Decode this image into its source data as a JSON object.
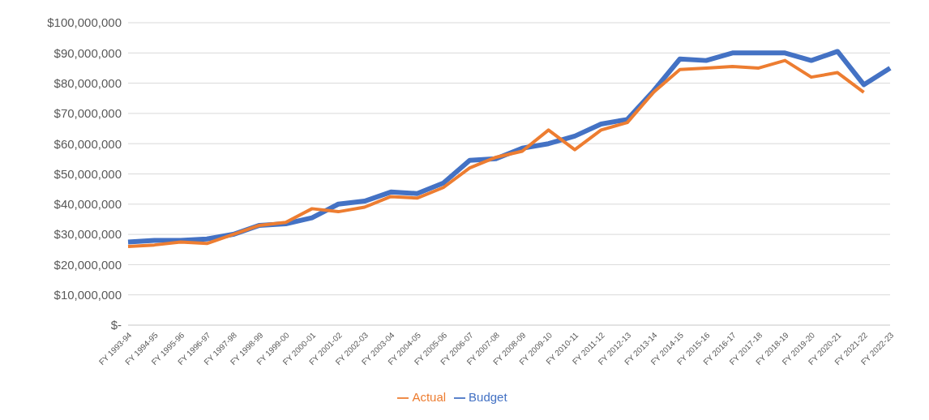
{
  "chart_data": {
    "type": "line",
    "categories": [
      "FY 1993-94",
      "FY 1994-95",
      "FY 1995-96",
      "FY 1996-97",
      "FY 1997-98",
      "FY 1998-99",
      "FY 1999-00",
      "FY 2000-01",
      "FY 2001-02",
      "FY 2002-03",
      "FY 2003-04",
      "FY 2004-05",
      "FY 2005-06",
      "FY 2006-07",
      "FY 2007-08",
      "FY 2008-09",
      "FY 2009-10",
      "FY 2010-11",
      "FY 2011-12",
      "FY 2012-13",
      "FY 2013-14",
      "FY 2014-15",
      "FY 2015-16",
      "FY 2016-17",
      "FY 2017-18",
      "FY 2018-19",
      "FY 2019-20",
      "FY 2020-21",
      "FY 2021-22",
      "FY 2022-23"
    ],
    "series": [
      {
        "name": "Budget",
        "color": "#4472c4",
        "values": [
          27500000,
          28000000,
          28000000,
          28500000,
          30000000,
          33000000,
          33500000,
          35500000,
          40000000,
          41000000,
          44000000,
          43500000,
          47000000,
          54500000,
          55000000,
          58500000,
          60000000,
          62500000,
          66500000,
          68000000,
          77500000,
          88000000,
          87500000,
          90000000,
          90000000,
          90000000,
          87500000,
          90500000,
          79500000,
          85000000
        ]
      },
      {
        "name": "Actual",
        "color": "#ed7d31",
        "values": [
          26000000,
          26500000,
          27500000,
          27000000,
          30000000,
          33000000,
          34000000,
          38500000,
          37500000,
          39000000,
          42500000,
          42000000,
          45500000,
          52000000,
          55500000,
          57500000,
          64500000,
          58000000,
          64500000,
          67000000,
          77000000,
          84500000,
          85000000,
          85500000,
          85000000,
          87500000,
          82000000,
          83500000,
          77000000,
          null
        ]
      }
    ],
    "ylim": [
      0,
      100000000
    ],
    "yticks": [
      {
        "value": 0,
        "label": "$-"
      },
      {
        "value": 10000000,
        "label": "$10,000,000"
      },
      {
        "value": 20000000,
        "label": "$20,000,000"
      },
      {
        "value": 30000000,
        "label": "$30,000,000"
      },
      {
        "value": 40000000,
        "label": "$40,000,000"
      },
      {
        "value": 50000000,
        "label": "$50,000,000"
      },
      {
        "value": 60000000,
        "label": "$60,000,000"
      },
      {
        "value": 70000000,
        "label": "$70,000,000"
      },
      {
        "value": 80000000,
        "label": "$80,000,000"
      },
      {
        "value": 90000000,
        "label": "$90,000,000"
      },
      {
        "value": 100000000,
        "label": "$100,000,000"
      }
    ],
    "grid": "y",
    "legend": "bottom",
    "marker": "none",
    "line_style": "solid"
  }
}
